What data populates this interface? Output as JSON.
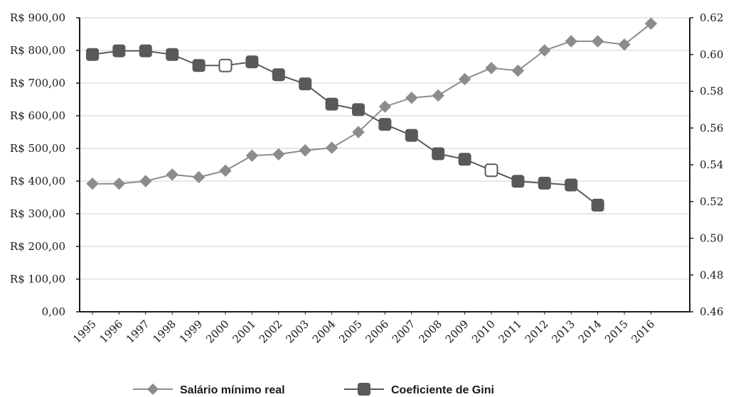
{
  "chart_data": {
    "type": "line",
    "title": "",
    "xlabel": "",
    "ylabel": "",
    "categories": [
      "1995",
      "1996",
      "1997",
      "1998",
      "1999",
      "2000",
      "2001",
      "2002",
      "2003",
      "2004",
      "2005",
      "2006",
      "2007",
      "2008",
      "2009",
      "2010",
      "2011",
      "2012",
      "2013",
      "2014",
      "2015",
      "2016"
    ],
    "y_left": {
      "ylim": [
        0,
        900
      ],
      "ticks": [
        0,
        100,
        200,
        300,
        400,
        500,
        600,
        700,
        800,
        900
      ],
      "tick_labels": [
        "0,00",
        "R$ 100,00",
        "R$ 200,00",
        "R$ 300,00",
        "R$ 400,00",
        "R$ 500,00",
        "R$ 600,00",
        "R$ 700,00",
        "R$ 800,00",
        "R$ 900,00"
      ]
    },
    "y_right": {
      "ylim": [
        0.46,
        0.62
      ],
      "ticks": [
        0.46,
        0.48,
        0.5,
        0.52,
        0.54,
        0.56,
        0.58,
        0.6,
        0.62
      ],
      "tick_labels": [
        "0.46",
        "0.48",
        "0.50",
        "0.52",
        "0.54",
        "0.56",
        "0.58",
        "0.60",
        "0.62"
      ]
    },
    "grid": true,
    "legend_position": "bottom",
    "series": [
      {
        "name": "Salário mínimo real",
        "axis": "left",
        "marker": "diamond",
        "color": "#8c8c8c",
        "values": [
          392,
          392,
          400,
          420,
          412,
          432,
          478,
          482,
          494,
          502,
          550,
          628,
          655,
          662,
          712,
          746,
          738,
          800,
          828,
          828,
          818,
          882
        ]
      },
      {
        "name": "Coeficiente de Gini",
        "axis": "right",
        "marker": "square",
        "color": "#595959",
        "values": [
          0.6,
          0.602,
          0.602,
          0.6,
          0.594,
          0.594,
          0.596,
          0.589,
          0.584,
          0.573,
          0.57,
          0.562,
          0.556,
          0.546,
          0.543,
          0.537,
          0.531,
          0.53,
          0.529,
          0.518,
          null,
          null
        ],
        "hollow_markers": [
          "2000",
          "2010"
        ]
      }
    ]
  }
}
